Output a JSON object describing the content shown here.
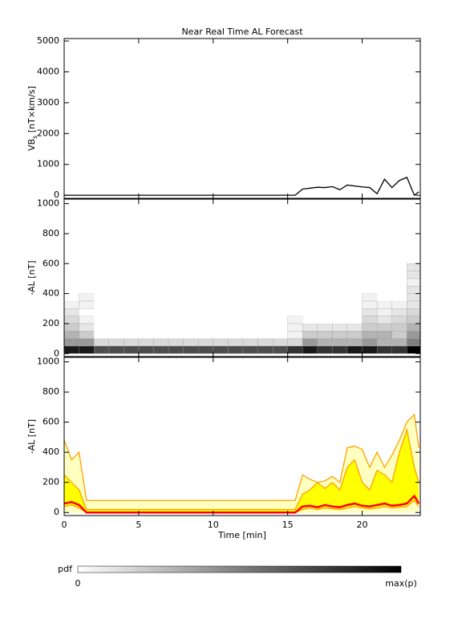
{
  "chart_data": [
    {
      "type": "line",
      "title": "Near Real Time AL Forecast",
      "y_label": "VB",
      "y_label_sub": "s",
      "y_label_unit": " [nT×km/s]",
      "xlim": [
        0,
        23.9
      ],
      "ylim": [
        -100,
        5080
      ],
      "yticks": [
        0,
        1000,
        2000,
        3000,
        4000,
        5000
      ],
      "x": [
        0,
        0.5,
        1,
        1.5,
        2,
        2.5,
        3,
        3.5,
        4,
        4.5,
        5,
        5.5,
        6,
        6.5,
        7,
        7.5,
        8,
        8.5,
        9,
        9.5,
        10,
        10.5,
        11,
        11.5,
        12,
        12.5,
        13,
        13.5,
        14,
        14.5,
        15,
        15.5,
        16,
        16.5,
        17,
        17.5,
        18,
        18.5,
        19,
        19.5,
        20,
        20.5,
        21,
        21.5,
        22,
        22.5,
        23,
        23.5,
        23.8
      ],
      "series": [
        {
          "color": "#000000",
          "values": [
            0,
            0,
            0,
            0,
            0,
            0,
            0,
            0,
            0,
            0,
            0,
            0,
            0,
            0,
            0,
            0,
            0,
            0,
            0,
            0,
            0,
            0,
            0,
            0,
            0,
            0,
            0,
            0,
            0,
            0,
            0,
            0,
            200,
            230,
            260,
            250,
            280,
            180,
            330,
            300,
            270,
            250,
            50,
            520,
            250,
            480,
            580,
            0,
            110
          ]
        }
      ]
    },
    {
      "type": "heatmap",
      "y_label": "-AL [nT]",
      "xlim": [
        0,
        23.9
      ],
      "ylim": [
        -20,
        1030
      ],
      "yticks": [
        0,
        200,
        400,
        600,
        800,
        1000
      ],
      "time_bins": [
        0,
        1,
        2,
        3,
        4,
        5,
        6,
        7,
        8,
        9,
        10,
        11,
        12,
        13,
        14,
        15,
        16,
        17,
        18,
        19,
        20,
        21,
        22,
        23,
        23.9
      ],
      "al_bins": [
        0,
        50,
        100,
        150,
        200,
        250,
        300,
        350,
        400,
        450,
        500,
        550,
        600
      ],
      "pdf": [
        [
          0.9,
          0.9,
          0.7,
          0.7,
          0.7,
          0.7,
          0.7,
          0.7,
          0.7,
          0.7,
          0.7,
          0.7,
          0.7,
          0.7,
          0.7,
          0.8,
          0.9,
          0.8,
          0.8,
          0.9,
          0.9,
          0.8,
          0.8,
          1.0
        ],
        [
          0.4,
          0.4,
          0.15,
          0.15,
          0.15,
          0.15,
          0.15,
          0.15,
          0.15,
          0.15,
          0.15,
          0.15,
          0.15,
          0.15,
          0.15,
          0.15,
          0.4,
          0.3,
          0.3,
          0.3,
          0.4,
          0.3,
          0.3,
          0.5
        ],
        [
          0.3,
          0.2,
          0,
          0,
          0,
          0,
          0,
          0,
          0,
          0,
          0,
          0,
          0,
          0,
          0,
          0.05,
          0.2,
          0.2,
          0.2,
          0.2,
          0.3,
          0.3,
          0.2,
          0.4
        ],
        [
          0.2,
          0.1,
          0,
          0,
          0,
          0,
          0,
          0,
          0,
          0,
          0,
          0,
          0,
          0,
          0,
          0.05,
          0.1,
          0.1,
          0.1,
          0.1,
          0.2,
          0.2,
          0.2,
          0.3
        ],
        [
          0.15,
          0.05,
          0,
          0,
          0,
          0,
          0,
          0,
          0,
          0,
          0,
          0,
          0,
          0,
          0,
          0.05,
          0,
          0,
          0,
          0,
          0.15,
          0.1,
          0.15,
          0.2
        ],
        [
          0.1,
          0,
          0,
          0,
          0,
          0,
          0,
          0,
          0,
          0,
          0,
          0,
          0,
          0,
          0,
          0,
          0,
          0,
          0,
          0,
          0.1,
          0.05,
          0.1,
          0.15
        ],
        [
          0.05,
          0.05,
          0,
          0,
          0,
          0,
          0,
          0,
          0,
          0,
          0,
          0,
          0,
          0,
          0,
          0,
          0,
          0,
          0,
          0,
          0.05,
          0.05,
          0.05,
          0.1
        ],
        [
          0,
          0.05,
          0,
          0,
          0,
          0,
          0,
          0,
          0,
          0,
          0,
          0,
          0,
          0,
          0,
          0,
          0,
          0,
          0,
          0,
          0.05,
          0,
          0,
          0.1
        ],
        [
          0,
          0,
          0,
          0,
          0,
          0,
          0,
          0,
          0,
          0,
          0,
          0,
          0,
          0,
          0,
          0,
          0,
          0,
          0,
          0,
          0,
          0,
          0,
          0.1
        ],
        [
          0,
          0,
          0,
          0,
          0,
          0,
          0,
          0,
          0,
          0,
          0,
          0,
          0,
          0,
          0,
          0,
          0,
          0,
          0,
          0,
          0,
          0,
          0,
          0.05
        ],
        [
          0,
          0,
          0,
          0,
          0,
          0,
          0,
          0,
          0,
          0,
          0,
          0,
          0,
          0,
          0,
          0,
          0,
          0,
          0,
          0,
          0,
          0,
          0,
          0.1
        ],
        [
          0,
          0,
          0,
          0,
          0,
          0,
          0,
          0,
          0,
          0,
          0,
          0,
          0,
          0,
          0,
          0,
          0,
          0,
          0,
          0,
          0,
          0,
          0,
          0.1
        ]
      ],
      "colorbar_label": "pdf",
      "colorbar_min_label": "0",
      "colorbar_max_label": "max(p)"
    },
    {
      "type": "band",
      "y_label": "-AL [nT]",
      "x_label": "Time [min]",
      "xlim": [
        0,
        23.9
      ],
      "ylim": [
        -20,
        1030
      ],
      "yticks": [
        0,
        200,
        400,
        600,
        800,
        1000
      ],
      "xticks": [
        0,
        5,
        10,
        15,
        20
      ],
      "x": [
        0,
        0.5,
        1,
        1.5,
        2,
        2.5,
        3,
        3.5,
        4,
        4.5,
        5,
        5.5,
        6,
        6.5,
        7,
        7.5,
        8,
        8.5,
        9,
        9.5,
        10,
        10.5,
        11,
        11.5,
        12,
        12.5,
        13,
        13.5,
        14,
        14.5,
        15,
        15.5,
        16,
        16.5,
        17,
        17.5,
        18,
        18.5,
        19,
        19.5,
        20,
        20.5,
        21,
        21.5,
        22,
        22.5,
        23,
        23.5,
        23.8
      ],
      "series": [
        {
          "fill": "#ffffc0",
          "color": "#ffa000",
          "values": [
            480,
            350,
            400,
            80,
            80,
            80,
            80,
            80,
            80,
            80,
            80,
            80,
            80,
            80,
            80,
            80,
            80,
            80,
            80,
            80,
            80,
            80,
            80,
            80,
            80,
            80,
            80,
            80,
            80,
            80,
            80,
            80,
            250,
            220,
            200,
            210,
            240,
            200,
            430,
            440,
            420,
            300,
            400,
            300,
            380,
            480,
            600,
            650,
            430
          ]
        },
        {
          "fill": "#ffff00",
          "color": "#ffa000",
          "values": [
            250,
            200,
            150,
            20,
            20,
            20,
            20,
            20,
            20,
            20,
            20,
            20,
            20,
            20,
            20,
            20,
            20,
            20,
            20,
            20,
            20,
            20,
            20,
            20,
            20,
            20,
            20,
            20,
            20,
            20,
            20,
            20,
            120,
            150,
            200,
            160,
            200,
            150,
            300,
            350,
            200,
            150,
            280,
            250,
            200,
            400,
            550,
            300,
            200
          ]
        },
        {
          "fill": "#ffffc0",
          "color": "#ffa000",
          "values": [
            40,
            50,
            30,
            0,
            0,
            0,
            0,
            0,
            0,
            0,
            0,
            0,
            0,
            0,
            0,
            0,
            0,
            0,
            0,
            0,
            0,
            0,
            0,
            0,
            0,
            0,
            0,
            0,
            0,
            0,
            0,
            0,
            20,
            30,
            20,
            30,
            25,
            20,
            30,
            40,
            30,
            25,
            30,
            40,
            30,
            35,
            40,
            80,
            40
          ]
        },
        {
          "color": "#ff0000",
          "line_width": 2.5,
          "values": [
            60,
            70,
            50,
            0,
            0,
            0,
            0,
            0,
            0,
            0,
            0,
            0,
            0,
            0,
            0,
            0,
            0,
            0,
            0,
            0,
            0,
            0,
            0,
            0,
            0,
            0,
            0,
            0,
            0,
            0,
            0,
            0,
            40,
            45,
            35,
            50,
            40,
            35,
            50,
            60,
            45,
            40,
            50,
            60,
            45,
            50,
            60,
            110,
            60
          ]
        }
      ]
    }
  ]
}
